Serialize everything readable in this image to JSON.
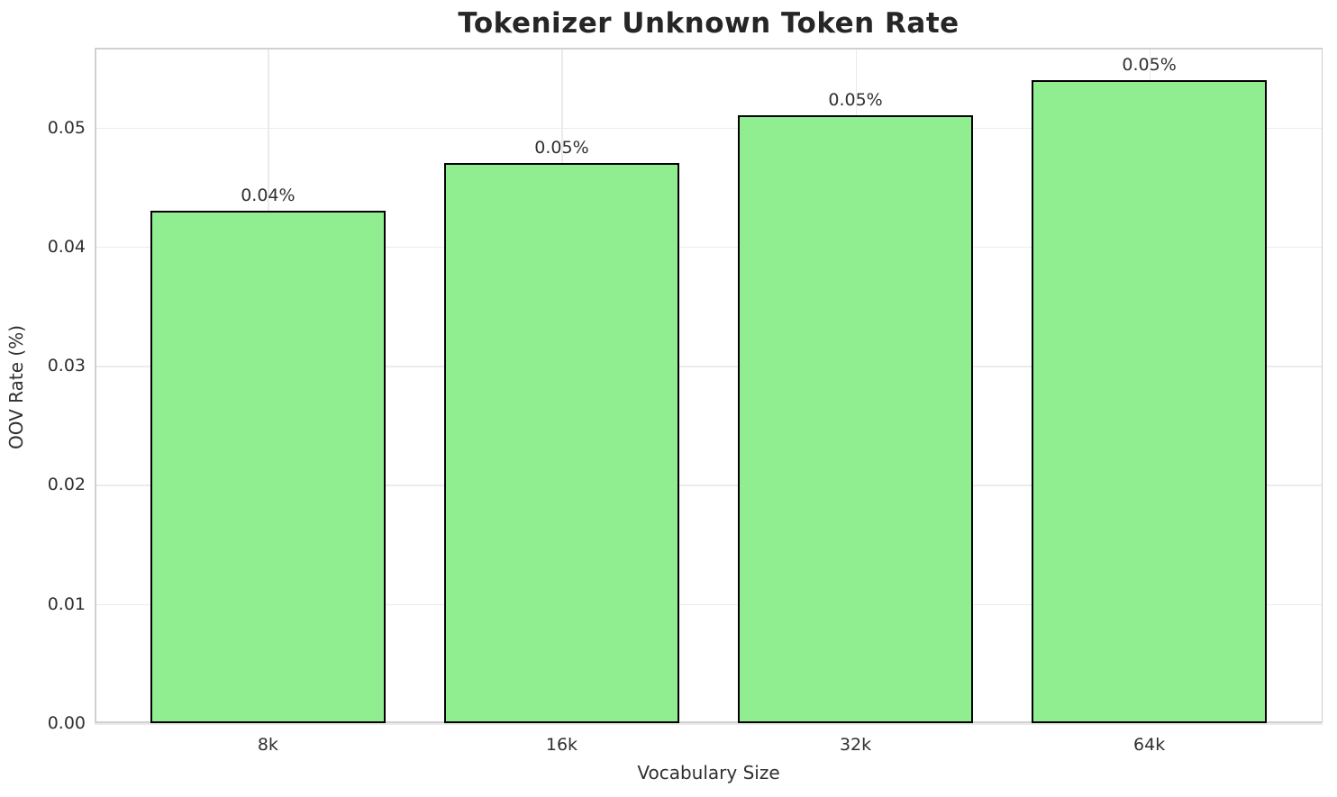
{
  "chart_data": {
    "type": "bar",
    "title": "Tokenizer Unknown Token Rate",
    "xlabel": "Vocabulary Size",
    "ylabel": "OOV Rate (%)",
    "categories": [
      "8k",
      "16k",
      "32k",
      "64k"
    ],
    "values": [
      0.043,
      0.047,
      0.051,
      0.054
    ],
    "bar_labels": [
      "0.04%",
      "0.05%",
      "0.05%",
      "0.05%"
    ],
    "yticks": [
      0.0,
      0.01,
      0.02,
      0.03,
      0.04,
      0.05
    ],
    "ytick_labels": [
      "0.00",
      "0.01",
      "0.02",
      "0.03",
      "0.04",
      "0.05"
    ],
    "ylim": [
      0,
      0.0567
    ],
    "grid": true,
    "legend_position": "none",
    "colors": {
      "bar_fill": "#90EE90",
      "bar_edge": "#000000",
      "grid": "#ebebeb",
      "spine": "#d0d0d0",
      "text": "#303030",
      "title_text": "#262626",
      "background": "#ffffff"
    }
  }
}
